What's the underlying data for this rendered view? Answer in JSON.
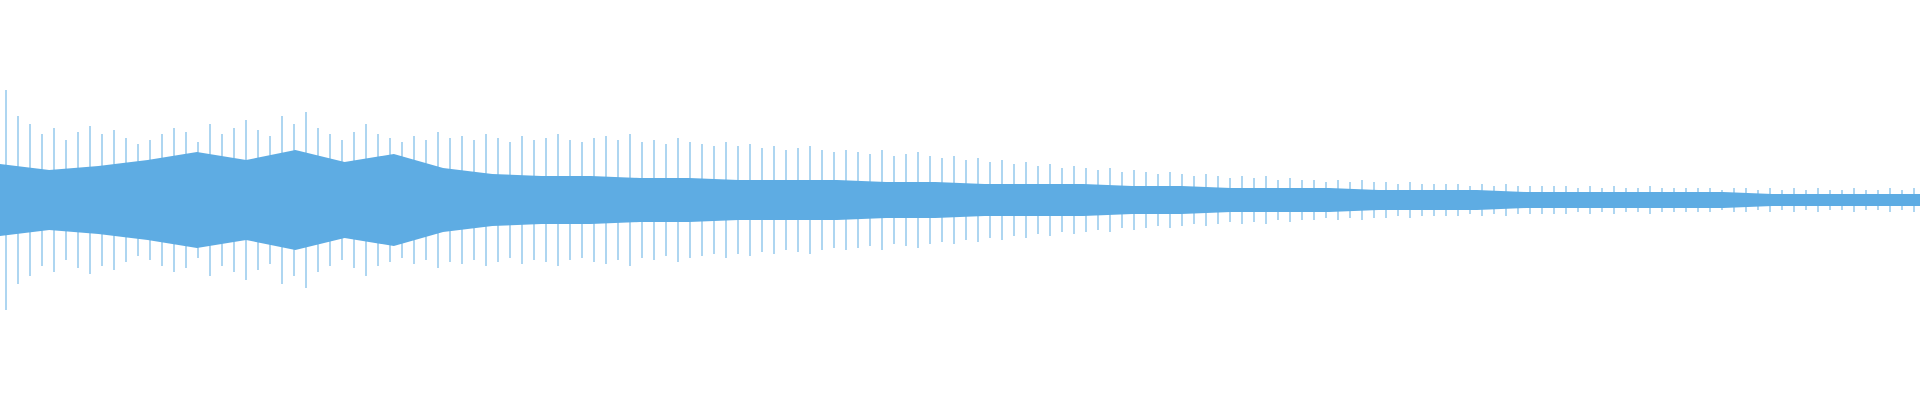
{
  "chart_data": {
    "type": "waveform",
    "color": "#5eace3",
    "ylim": [
      -1,
      1
    ],
    "series": [
      {
        "values": [
          0.55,
          0.42,
          0.38,
          0.33,
          0.36,
          0.3,
          0.34,
          0.37,
          0.33,
          0.35,
          0.31,
          0.28,
          0.3,
          0.33,
          0.36,
          0.34,
          0.29,
          0.38,
          0.33,
          0.36,
          0.4,
          0.35,
          0.32,
          0.42,
          0.38,
          0.44,
          0.36,
          0.33,
          0.3,
          0.34,
          0.38,
          0.33,
          0.31,
          0.29,
          0.32,
          0.3,
          0.34,
          0.31,
          0.32,
          0.3,
          0.33,
          0.31,
          0.29,
          0.32,
          0.3,
          0.31,
          0.33,
          0.3,
          0.29,
          0.31,
          0.32,
          0.3,
          0.33,
          0.29,
          0.3,
          0.28,
          0.31,
          0.29,
          0.28,
          0.27,
          0.29,
          0.27,
          0.28,
          0.26,
          0.27,
          0.25,
          0.26,
          0.27,
          0.25,
          0.24,
          0.25,
          0.24,
          0.23,
          0.25,
          0.22,
          0.23,
          0.24,
          0.22,
          0.21,
          0.22,
          0.2,
          0.21,
          0.19,
          0.2,
          0.18,
          0.19,
          0.17,
          0.18,
          0.16,
          0.17,
          0.16,
          0.15,
          0.16,
          0.14,
          0.15,
          0.14,
          0.13,
          0.14,
          0.13,
          0.12,
          0.13,
          0.12,
          0.11,
          0.12,
          0.11,
          0.12,
          0.1,
          0.11,
          0.1,
          0.1,
          0.09,
          0.1,
          0.09,
          0.1,
          0.09,
          0.09,
          0.08,
          0.09,
          0.08,
          0.08,
          0.08,
          0.08,
          0.07,
          0.08,
          0.07,
          0.08,
          0.07,
          0.07,
          0.07,
          0.07,
          0.07,
          0.06,
          0.07,
          0.06,
          0.07,
          0.06,
          0.06,
          0.07,
          0.06,
          0.06,
          0.06,
          0.06,
          0.06,
          0.05,
          0.06,
          0.06,
          0.05,
          0.06,
          0.05,
          0.06,
          0.05,
          0.06,
          0.05,
          0.05,
          0.06,
          0.05,
          0.05,
          0.06,
          0.05,
          0.06
        ]
      },
      {
        "values": [
          0.18,
          0.15,
          0.17,
          0.2,
          0.24,
          0.2,
          0.25,
          0.19,
          0.23,
          0.16,
          0.13,
          0.12,
          0.12,
          0.11,
          0.11,
          0.1,
          0.1,
          0.1,
          0.09,
          0.09,
          0.08,
          0.08,
          0.08,
          0.07,
          0.07,
          0.06,
          0.06,
          0.06,
          0.05,
          0.05,
          0.05,
          0.04,
          0.04,
          0.04,
          0.04,
          0.04,
          0.03,
          0.03,
          0.03,
          0.03
        ]
      }
    ]
  }
}
